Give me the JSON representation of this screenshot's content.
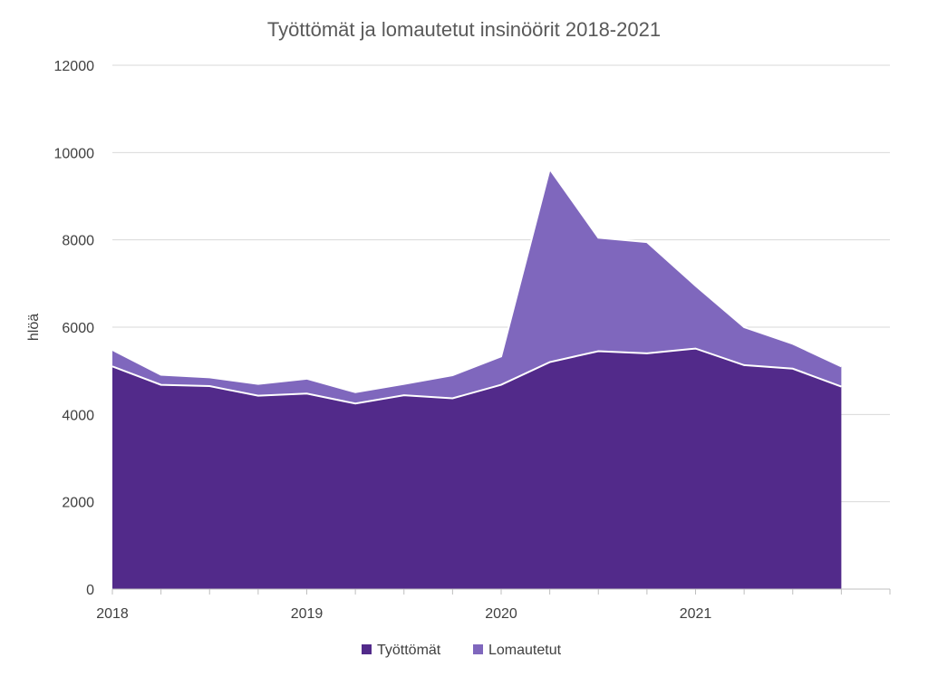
{
  "chart_data": {
    "type": "area",
    "stacked": true,
    "title": "Työttömät ja lomautetut insinöörit 2018-2021",
    "ylabel": "hlöä",
    "xlabel": "",
    "ylim": [
      0,
      12000
    ],
    "yticks": [
      "0",
      "2000",
      "4000",
      "6000",
      "8000",
      "10000",
      "12000"
    ],
    "xticks": [
      "2018",
      "2019",
      "2020",
      "2021"
    ],
    "x": [
      "2018 Q1",
      "2018 Q2",
      "2018 Q3",
      "2018 Q4",
      "2019 Q1",
      "2019 Q2",
      "2019 Q3",
      "2019 Q4",
      "2020 Q1",
      "2020 Q2",
      "2020 Q3",
      "2020 Q4",
      "2021 Q1",
      "2021 Q2",
      "2021 Q3",
      "2021 Q4"
    ],
    "series": [
      {
        "name": "Työttömät",
        "color": "#522a8a",
        "values": [
          5100,
          4680,
          4650,
          4430,
          4480,
          4250,
          4440,
          4370,
          4680,
          5200,
          5450,
          5400,
          5510,
          5130,
          5050,
          4640
        ]
      },
      {
        "name": "Lomautetut",
        "color": "#7f67bd",
        "values": [
          380,
          230,
          200,
          270,
          340,
          260,
          260,
          530,
          650,
          4420,
          2600,
          2550,
          1440,
          870,
          570,
          460
        ]
      }
    ],
    "grid": true,
    "legend_position": "bottom"
  }
}
